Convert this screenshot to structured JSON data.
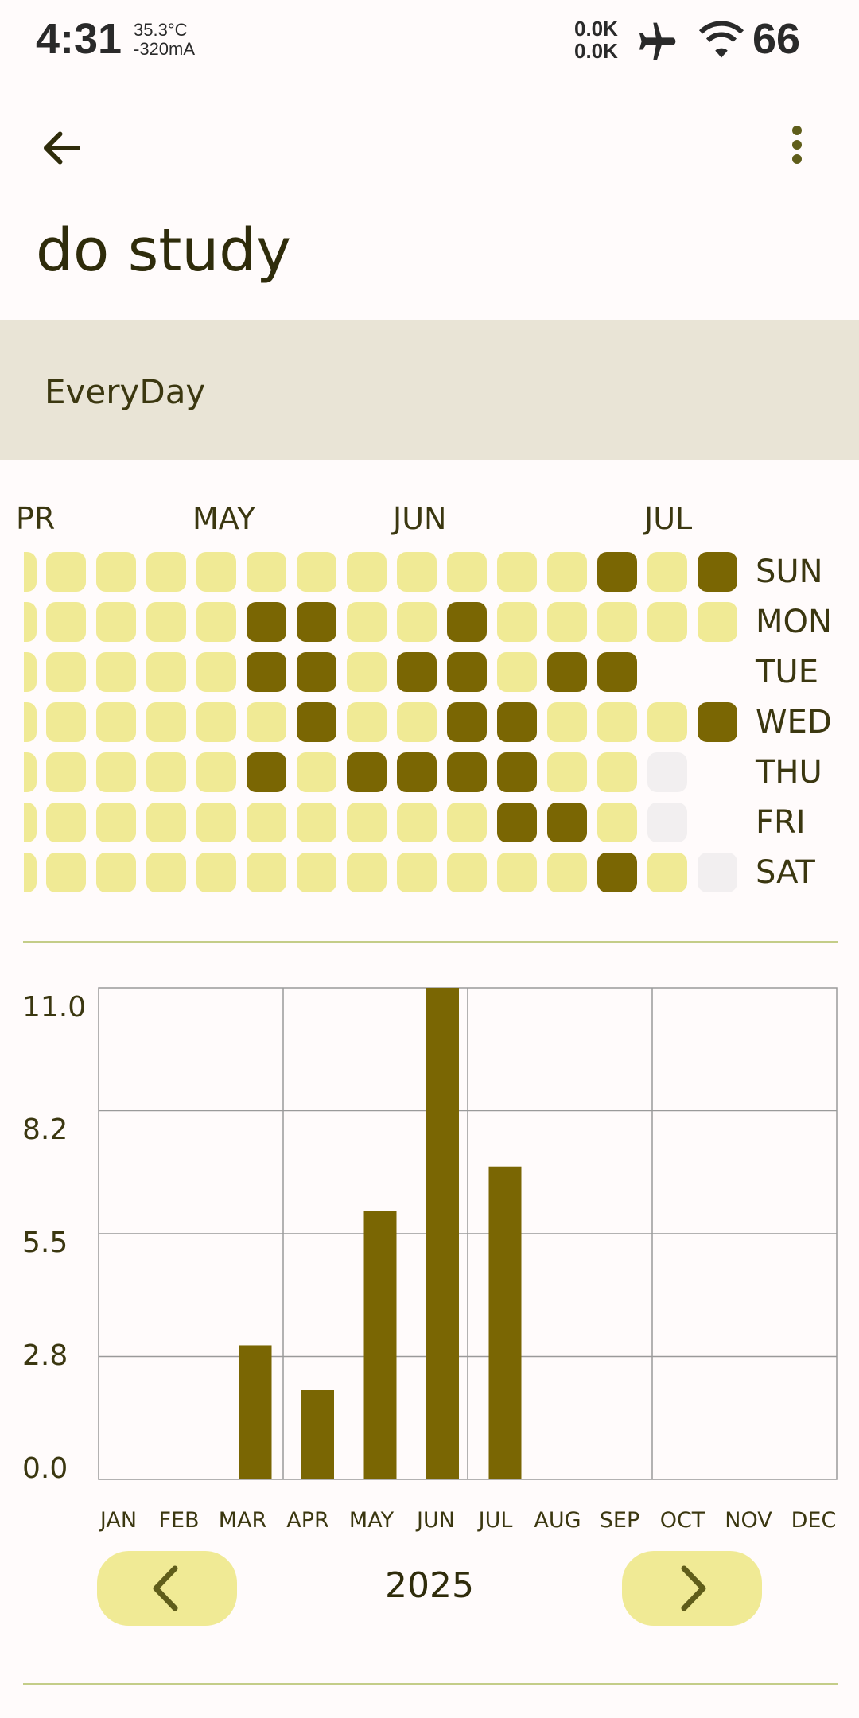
{
  "status_bar": {
    "time": "4:31",
    "temperature": "35.3°C",
    "current": "-320mA",
    "net_up": "0.0K",
    "net_down": "0.0K",
    "battery": "66",
    "icons": [
      "airplane-icon",
      "wifi-icon"
    ]
  },
  "app_bar": {
    "back_icon": "arrow-left-icon",
    "menu_icon": "more-vert-icon",
    "title": "do study"
  },
  "frequency": {
    "label": "EveryDay"
  },
  "heatmap": {
    "months": [
      "PR",
      "MAY",
      "JUN",
      "JUL"
    ],
    "days": [
      "SUN",
      "MON",
      "TUE",
      "WED",
      "THU",
      "FRI",
      "SAT"
    ],
    "colors": {
      "done": "#7a6603",
      "empty": "#f0ea95",
      "future": "#f2eff0"
    },
    "legend": "d = done, e = not done, f = future; rows SUN..SAT, columns by week",
    "rows": [
      "eeeeeeeeeeeede d",
      "eeeeeddeedeeeee",
      "eeeeeddedde dd",
      "eeeeeedeeddeeede",
      "eeeeededdddeef",
      "eeeeeeeeeeddef",
      "eeeeeeeeeeeedef"
    ]
  },
  "chart_data": {
    "type": "bar",
    "categories": [
      "JAN",
      "FEB",
      "MAR",
      "APR",
      "MAY",
      "JUN",
      "JUL",
      "AUG",
      "SEP",
      "OCT",
      "NOV",
      "DEC"
    ],
    "values": [
      0,
      0,
      3,
      2,
      6,
      11,
      7,
      0,
      0,
      0,
      0,
      0
    ],
    "y_ticks": [
      "11.0",
      "8.2",
      "5.5",
      "2.8",
      "0.0"
    ],
    "ylim": [
      0,
      11
    ],
    "bar_color": "#7a6603",
    "grid": true
  },
  "year_nav": {
    "year": "2025",
    "prev_icon": "chevron-left-icon",
    "next_icon": "chevron-right-icon"
  }
}
